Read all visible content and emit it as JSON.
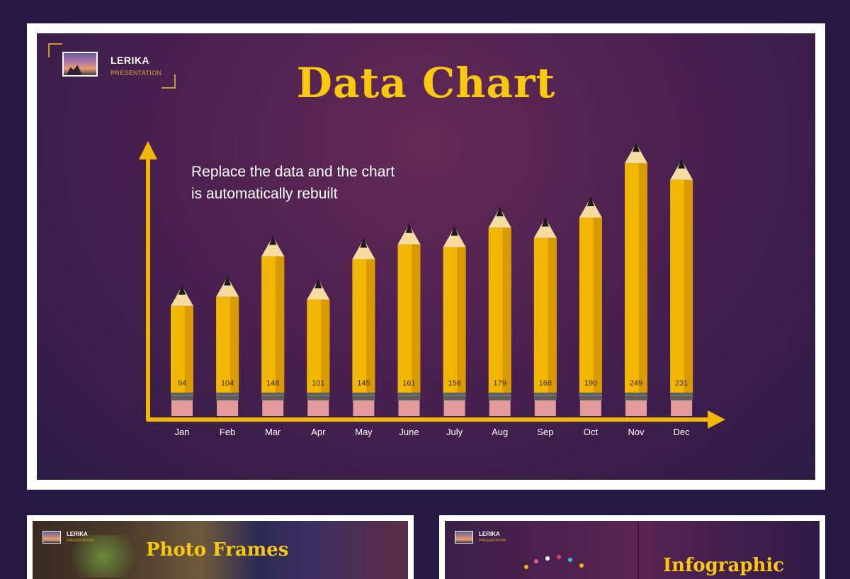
{
  "main_slide": {
    "logo": {
      "name": "LERIKA",
      "subtitle": "PRESENTATION"
    },
    "title": "Data Chart",
    "subtitle_lines": [
      "Replace the data and the chart",
      "is automatically rebuilt"
    ]
  },
  "chart_data": {
    "type": "bar",
    "title": "Data Chart",
    "categories": [
      "Jan",
      "Feb",
      "Mar",
      "Apr",
      "May",
      "June",
      "July",
      "Aug",
      "Sep",
      "Oct",
      "Nov",
      "Dec"
    ],
    "values": [
      94,
      104,
      148,
      101,
      145,
      161,
      158,
      179,
      168,
      190,
      249,
      231
    ],
    "xlabel": "",
    "ylabel": "",
    "grid": false,
    "legend": "none",
    "colors": {
      "pencil_body": "#f2b705",
      "pencil_shade": "#d89a00",
      "wood_tip": "#f7dca1",
      "lead": "#1a1a1a",
      "ferrule": "#5e5e5e",
      "eraser": "#e39a9a",
      "axis": "#f2b705"
    }
  },
  "thumbnails": [
    {
      "logo": {
        "name": "LERIKA",
        "subtitle": "PRESENTATION"
      },
      "title": "Photo Frames"
    },
    {
      "logo": {
        "name": "LERIKA",
        "subtitle": "PRESENTATION"
      },
      "title": "Infographic"
    }
  ]
}
